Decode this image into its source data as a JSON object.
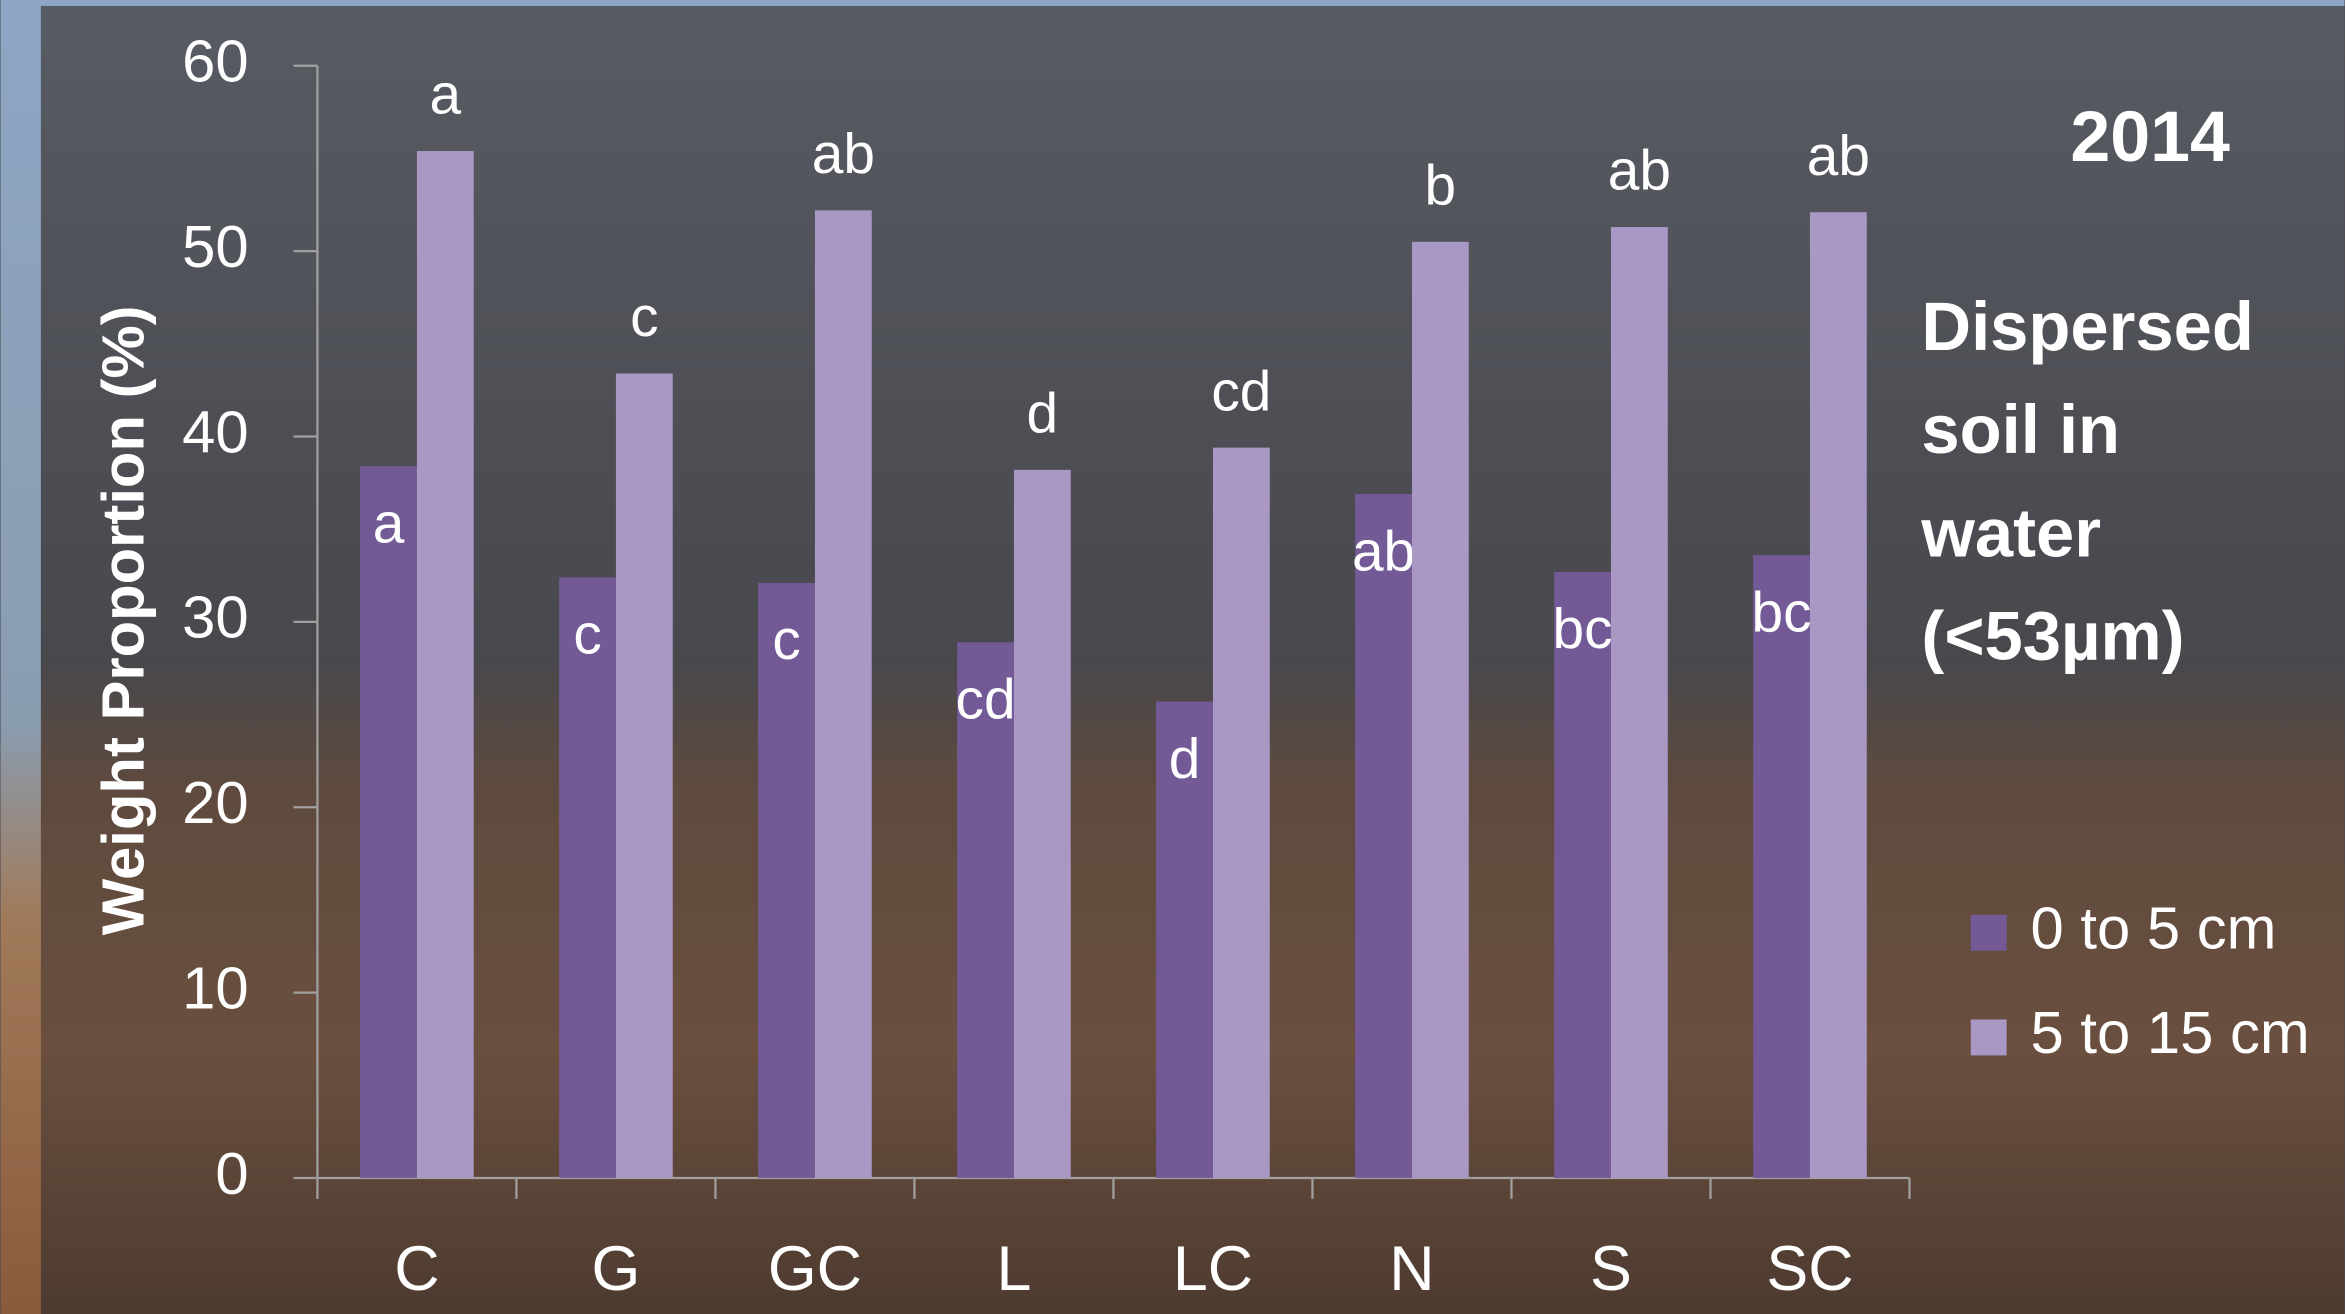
{
  "chart_data": {
    "type": "bar",
    "y_label": "Weight Proportion (%)",
    "categories": [
      "C",
      "G",
      "GC",
      "L",
      "LC",
      "N",
      "S",
      "SC"
    ],
    "series": [
      {
        "name": "0 to 5 cm",
        "color": "#735a96",
        "values": [
          38.4,
          32.4,
          32.1,
          28.9,
          25.7,
          36.9,
          32.7,
          33.6
        ],
        "letters": [
          "a",
          "c",
          "c",
          "cd",
          "d",
          "ab",
          "bc",
          "bc"
        ]
      },
      {
        "name": "5 to 15 cm",
        "color": "#a998c4",
        "values": [
          55.4,
          43.4,
          52.2,
          38.2,
          39.4,
          50.5,
          51.3,
          52.1
        ],
        "letters": [
          "a",
          "c",
          "ab",
          "d",
          "cd",
          "b",
          "ab",
          "ab"
        ]
      }
    ],
    "ylim": [
      0,
      60
    ],
    "yticks": [
      0,
      10,
      20,
      30,
      40,
      50,
      60
    ],
    "annotations": {
      "year": "2014",
      "description": [
        "Dispersed",
        "soil in",
        "water",
        "(<53µm)"
      ]
    }
  }
}
